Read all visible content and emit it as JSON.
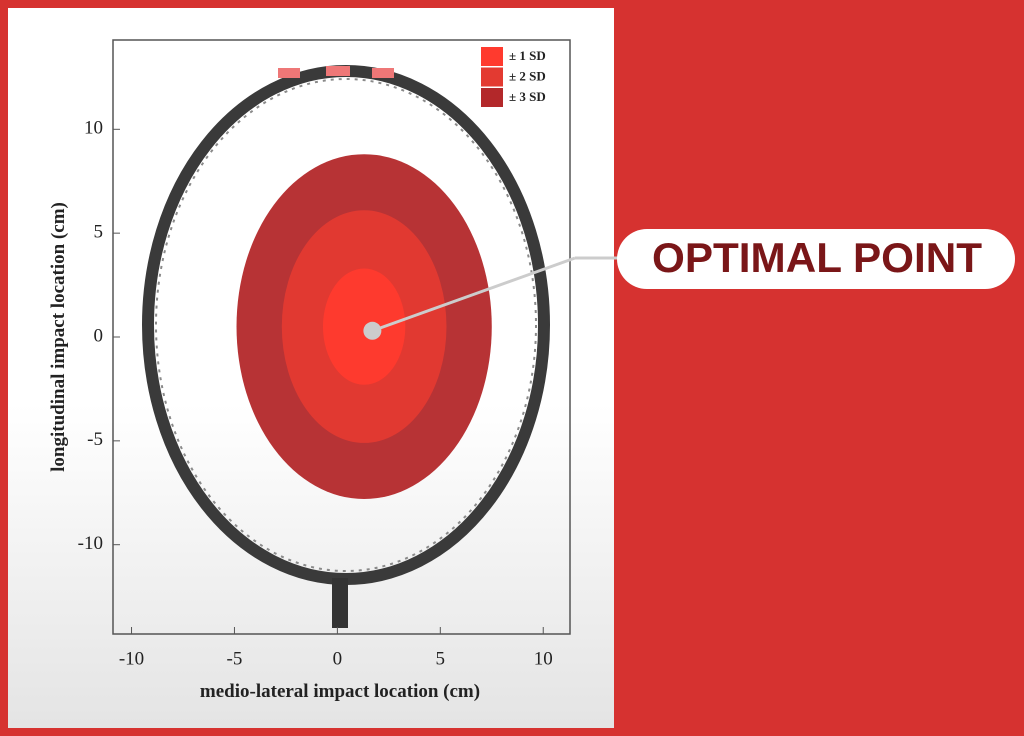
{
  "chart_data": {
    "type": "ellipse",
    "x_label": "medio-lateral impact location (cm)",
    "y_label": "longitudinal impact location (cm)",
    "xlim": [
      -10.9,
      11.3
    ],
    "ylim": [
      -14.3,
      14.3
    ],
    "xticks": [
      -10,
      -5,
      0,
      5,
      10
    ],
    "yticks": [
      -10,
      -5,
      0,
      5,
      10
    ],
    "center": {
      "x": 1.3,
      "y": 0.5
    },
    "series": [
      {
        "name": "± 1 SD",
        "color": "#ff3a2e",
        "rx": 2.0,
        "ry": 2.8
      },
      {
        "name": "± 2 SD",
        "color": "#e33a31",
        "rx": 4.0,
        "ry": 5.6
      },
      {
        "name": "± 3 SD",
        "color": "#b3282a",
        "rx": 6.2,
        "ry": 8.3
      }
    ],
    "legend": "upper right",
    "annotation": {
      "text": "OPTIMAL POINT",
      "x": 1.7,
      "y": 0.3
    }
  }
}
